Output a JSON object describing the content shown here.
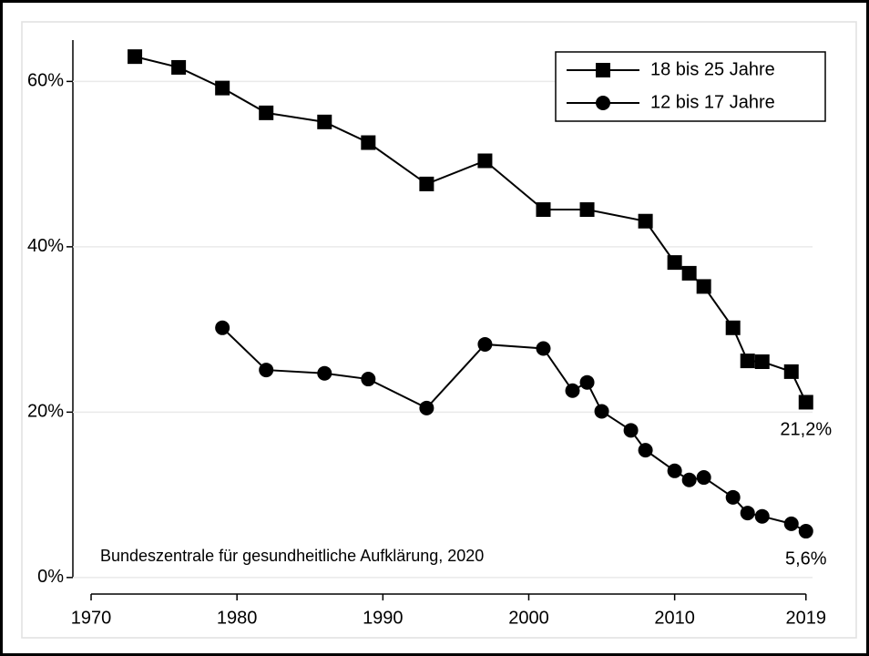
{
  "chart_data": {
    "type": "line",
    "annotation": "Bundeszentrale für gesundheitliche Aufklärung, 2020",
    "x": [
      1973,
      1976,
      1979,
      1982,
      1986,
      1989,
      1993,
      1997,
      2001,
      2003,
      2004,
      2005,
      2007,
      2008,
      2010,
      2011,
      2012,
      2014,
      2015,
      2016,
      2018,
      2019
    ],
    "series": [
      {
        "name": "18 bis 25 Jahre",
        "color": "#000000",
        "marker": "square",
        "values": [
          63.0,
          61.7,
          59.2,
          56.2,
          55.1,
          52.6,
          47.6,
          50.4,
          44.5,
          null,
          44.5,
          null,
          null,
          43.1,
          38.1,
          36.8,
          35.2,
          30.2,
          26.2,
          26.1,
          24.9,
          21.2
        ],
        "value_labels": [
          null,
          null,
          null,
          null,
          null,
          null,
          null,
          null,
          null,
          null,
          null,
          null,
          null,
          null,
          null,
          null,
          null,
          null,
          null,
          null,
          null,
          "21,2%"
        ]
      },
      {
        "name": "12 bis 17 Jahre",
        "color": "#000000",
        "marker": "circle",
        "values": [
          null,
          null,
          30.2,
          25.1,
          24.7,
          24.0,
          20.5,
          28.2,
          27.7,
          22.6,
          23.6,
          20.1,
          17.8,
          15.4,
          12.9,
          11.8,
          12.1,
          9.7,
          7.8,
          7.4,
          6.5,
          5.6
        ],
        "value_labels": [
          null,
          null,
          null,
          null,
          null,
          null,
          null,
          null,
          null,
          null,
          null,
          null,
          null,
          null,
          null,
          null,
          null,
          null,
          null,
          null,
          null,
          "5,6%"
        ]
      }
    ],
    "xlim": [
      1968.75,
      2020.7
    ],
    "xticks": [
      1970,
      1980,
      1990,
      2000,
      2010,
      2019
    ],
    "ylim": [
      -2,
      65
    ],
    "yticks": [
      {
        "value": 0,
        "label": "0%"
      },
      {
        "value": 20,
        "label": "20%"
      },
      {
        "value": 40,
        "label": "40%"
      },
      {
        "value": 60,
        "label": "60%"
      }
    ],
    "grid": true,
    "legend": "top-right"
  }
}
